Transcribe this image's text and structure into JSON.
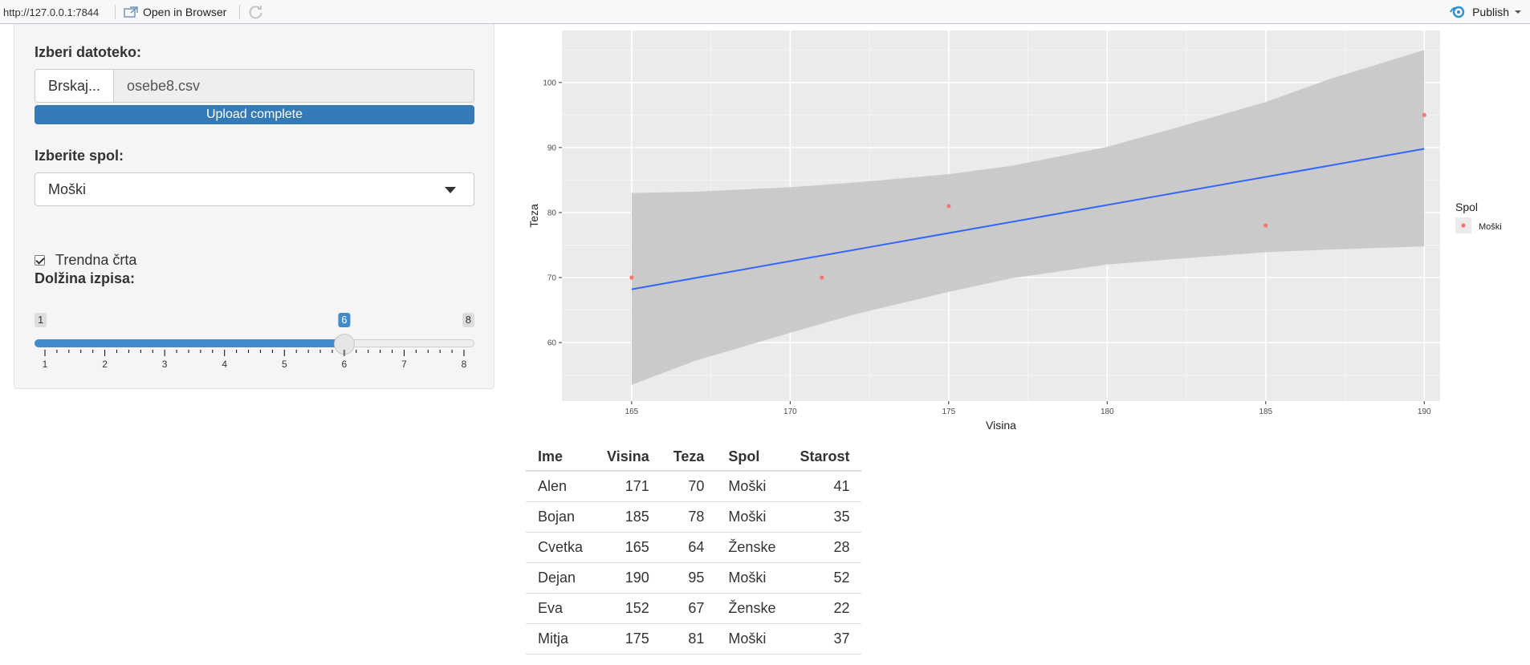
{
  "toolbar": {
    "url": "http://127.0.0.1:7844",
    "open_in_browser": "Open in Browser",
    "publish": "Publish"
  },
  "sidebar": {
    "file_label": "Izberi datoteko:",
    "browse_button": "Brskaj...",
    "file_name": "osebe8.csv",
    "upload_status": "Upload complete",
    "gender_label": "Izberite spol:",
    "gender_selected": "Moški",
    "trend_checkbox_label": "Trendna črta",
    "trend_checked": true,
    "length_label": "Dolžina izpisa:",
    "slider": {
      "min": 1,
      "max": 8,
      "value": 6,
      "ticks": [
        "1",
        "2",
        "3",
        "4",
        "5",
        "6",
        "7",
        "8"
      ]
    }
  },
  "chart_data": {
    "type": "scatter",
    "xlabel": "Visina",
    "ylabel": "Teza",
    "xlim": [
      162.8,
      190.5
    ],
    "ylim": [
      51,
      108
    ],
    "x_ticks": [
      165,
      170,
      175,
      180,
      185,
      190
    ],
    "y_ticks": [
      60,
      70,
      80,
      90,
      100
    ],
    "grid": true,
    "legend_title": "Spol",
    "legend_placement": "right",
    "series": [
      {
        "name": "Moški",
        "color": "#F8766D",
        "points": [
          [
            165,
            70
          ],
          [
            171,
            70
          ],
          [
            175,
            81
          ],
          [
            185,
            78
          ],
          [
            190,
            95
          ]
        ]
      }
    ],
    "trend": {
      "color": "#3366FF",
      "x": [
        165,
        190
      ],
      "y": [
        68.2,
        89.8
      ],
      "band": {
        "x": [
          165,
          167,
          170,
          172,
          175,
          177,
          180,
          182,
          185,
          187,
          190
        ],
        "lower": [
          53.5,
          57.2,
          61.5,
          64.3,
          67.8,
          69.9,
          72.0,
          72.8,
          73.9,
          74.3,
          74.8
        ],
        "upper": [
          83.0,
          83.2,
          83.9,
          84.6,
          85.9,
          87.2,
          90.1,
          92.8,
          97.0,
          100.5,
          105.0
        ]
      },
      "band_color": "#c6c6c6"
    }
  },
  "table": {
    "columns": [
      "Ime",
      "Visina",
      "Teza",
      "Spol",
      "Starost"
    ],
    "rows": [
      [
        "Alen",
        "171",
        "70",
        "Moški",
        "41"
      ],
      [
        "Bojan",
        "185",
        "78",
        "Moški",
        "35"
      ],
      [
        "Cvetka",
        "165",
        "64",
        "Ženske",
        "28"
      ],
      [
        "Dejan",
        "190",
        "95",
        "Moški",
        "52"
      ],
      [
        "Eva",
        "152",
        "67",
        "Ženske",
        "22"
      ],
      [
        "Mitja",
        "175",
        "81",
        "Moški",
        "37"
      ]
    ]
  }
}
